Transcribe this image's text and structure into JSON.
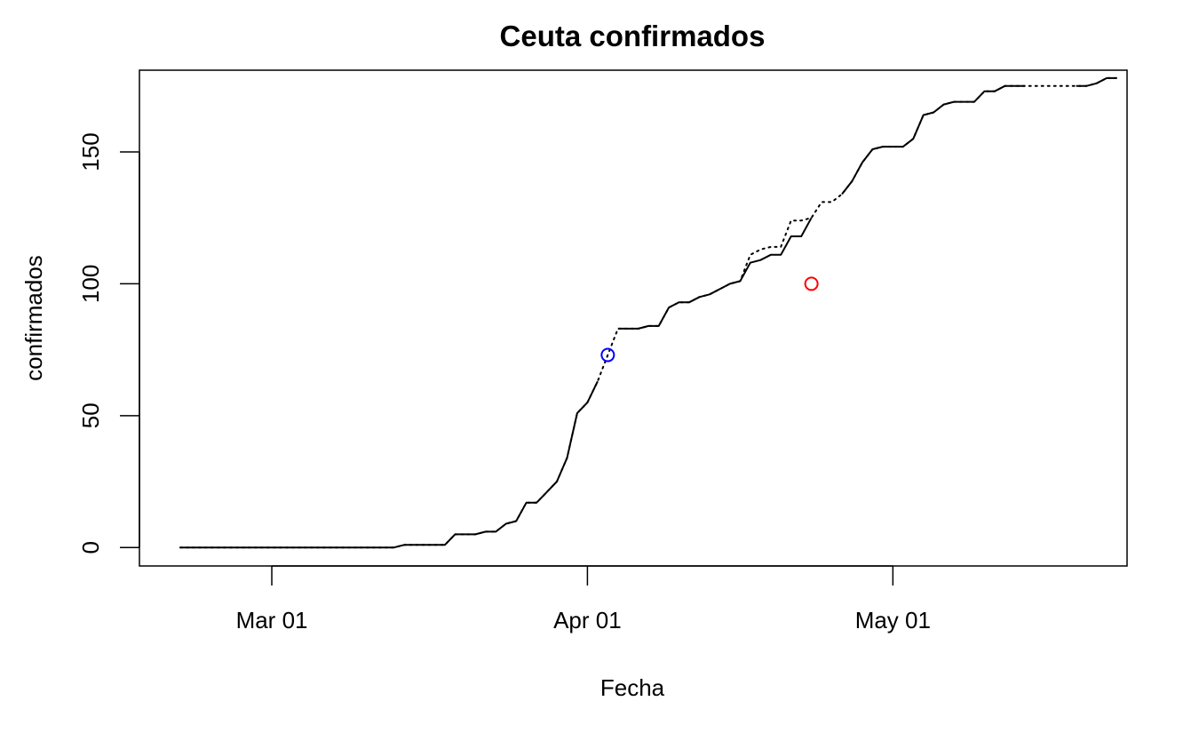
{
  "chart_data": {
    "type": "line",
    "title": "Ceuta confirmados",
    "xlabel": "Fecha",
    "ylabel": "confirmados",
    "x_range": [
      "2020-02-17",
      "2020-05-24"
    ],
    "ylim": [
      -7,
      181
    ],
    "x_ticks": [
      {
        "date": "2020-03-01",
        "label": "Mar 01"
      },
      {
        "date": "2020-04-01",
        "label": "Apr 01"
      },
      {
        "date": "2020-05-01",
        "label": "May 01"
      }
    ],
    "y_ticks": [
      {
        "value": 0,
        "label": "0"
      },
      {
        "value": 50,
        "label": "50"
      },
      {
        "value": 100,
        "label": "100"
      },
      {
        "value": 150,
        "label": "150"
      }
    ],
    "series": [
      {
        "line_style": "dotted",
        "color": "#000000",
        "x": [
          "2020-02-21",
          "2020-03-13",
          "2020-03-14",
          "2020-03-18",
          "2020-03-19",
          "2020-03-21",
          "2020-03-22",
          "2020-03-23",
          "2020-03-24",
          "2020-03-25",
          "2020-03-26",
          "2020-03-27",
          "2020-03-28",
          "2020-03-29",
          "2020-03-30",
          "2020-03-31",
          "2020-04-01",
          "2020-04-02",
          "2020-04-03",
          "2020-04-04",
          "2020-04-05",
          "2020-04-06",
          "2020-04-07",
          "2020-04-08",
          "2020-04-09",
          "2020-04-10",
          "2020-04-11",
          "2020-04-12",
          "2020-04-13",
          "2020-04-14",
          "2020-04-15",
          "2020-04-16",
          "2020-04-17",
          "2020-04-18",
          "2020-04-19",
          "2020-04-20",
          "2020-04-21",
          "2020-04-22",
          "2020-04-23",
          "2020-04-24",
          "2020-04-25",
          "2020-04-26",
          "2020-04-27",
          "2020-04-28",
          "2020-04-29",
          "2020-04-30",
          "2020-05-01",
          "2020-05-02",
          "2020-05-03",
          "2020-05-04",
          "2020-05-05",
          "2020-05-06",
          "2020-05-07",
          "2020-05-08",
          "2020-05-09",
          "2020-05-10",
          "2020-05-11",
          "2020-05-12",
          "2020-05-13",
          "2020-05-14",
          "2020-05-15",
          "2020-05-16",
          "2020-05-17",
          "2020-05-18",
          "2020-05-19",
          "2020-05-20",
          "2020-05-21",
          "2020-05-22",
          "2020-05-23"
        ],
        "y": [
          0,
          0,
          1,
          1,
          5,
          5,
          6,
          6,
          9,
          10,
          17,
          17,
          21,
          25,
          34,
          51,
          55,
          63,
          73,
          83,
          83,
          83,
          84,
          84,
          91,
          93,
          93,
          95,
          96,
          98,
          100,
          101,
          111,
          113,
          114,
          114,
          124,
          124,
          125,
          131,
          131,
          134,
          139,
          146,
          151,
          152,
          152,
          152,
          155,
          164,
          165,
          168,
          169,
          169,
          169,
          173,
          173,
          175,
          175,
          175,
          175,
          175,
          175,
          175,
          175,
          175,
          176,
          178,
          178
        ]
      },
      {
        "line_style": "solid",
        "color": "#000000",
        "x": [
          "2020-02-21",
          "2020-03-13",
          "2020-03-14",
          "2020-03-18",
          "2020-03-19",
          "2020-03-21",
          "2020-03-22",
          "2020-03-23",
          "2020-03-24",
          "2020-03-25",
          "2020-03-26",
          "2020-03-27",
          "2020-03-28",
          "2020-03-29",
          "2020-03-30",
          "2020-03-31",
          "2020-04-01",
          "2020-04-02",
          "2020-04-03",
          "2020-04-04",
          "2020-04-05",
          "2020-04-06",
          "2020-04-07",
          "2020-04-08",
          "2020-04-09",
          "2020-04-10",
          "2020-04-11",
          "2020-04-12",
          "2020-04-13",
          "2020-04-14",
          "2020-04-15",
          "2020-04-16",
          "2020-04-17",
          "2020-04-18",
          "2020-04-19",
          "2020-04-20",
          "2020-04-21",
          "2020-04-22",
          "2020-04-23",
          "2020-04-24",
          "2020-04-25",
          "2020-04-26",
          "2020-04-27",
          "2020-04-28",
          "2020-04-29",
          "2020-04-30",
          "2020-05-01",
          "2020-05-02",
          "2020-05-03",
          "2020-05-04",
          "2020-05-05",
          "2020-05-06",
          "2020-05-07",
          "2020-05-08",
          "2020-05-09",
          "2020-05-10",
          "2020-05-11",
          "2020-05-12",
          "2020-05-13",
          "2020-05-14",
          "2020-05-15",
          "2020-05-16",
          "2020-05-17",
          "2020-05-18",
          "2020-05-19",
          "2020-05-20",
          "2020-05-21",
          "2020-05-22",
          "2020-05-23"
        ],
        "y": [
          0,
          0,
          1,
          1,
          5,
          5,
          6,
          6,
          9,
          10,
          17,
          17,
          21,
          25,
          34,
          51,
          55,
          63,
          null,
          83,
          83,
          83,
          84,
          84,
          91,
          93,
          93,
          95,
          96,
          98,
          100,
          101,
          108,
          109,
          111,
          111,
          118,
          118,
          125,
          null,
          null,
          134,
          139,
          146,
          151,
          152,
          152,
          152,
          155,
          164,
          165,
          168,
          169,
          169,
          169,
          173,
          173,
          175,
          175,
          175,
          null,
          null,
          null,
          null,
          175,
          175,
          176,
          178,
          178
        ]
      }
    ],
    "points": [
      {
        "x": "2020-04-03",
        "y": 73,
        "color": "#0000ff",
        "shape": "open-circle"
      },
      {
        "x": "2020-04-23",
        "y": 100,
        "color": "#ff0000",
        "shape": "open-circle"
      }
    ]
  }
}
